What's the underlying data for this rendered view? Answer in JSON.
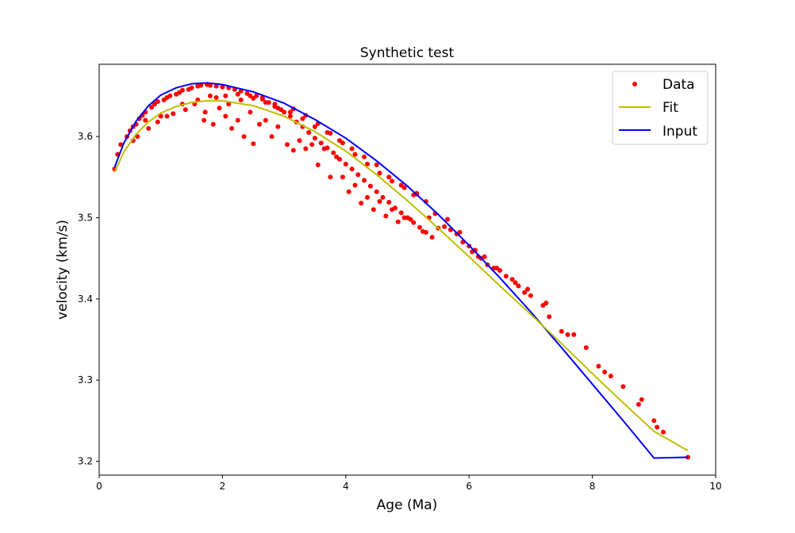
{
  "chart_data": {
    "type": "scatter",
    "title": "Synthetic test",
    "xlabel": "Age (Ma)",
    "ylabel": "velocity (km/s)",
    "xlim": [
      0,
      10
    ],
    "ylim": [
      3.183,
      3.689
    ],
    "xticks": [
      0,
      2,
      4,
      6,
      8,
      10
    ],
    "yticks": [
      3.2,
      3.3,
      3.4,
      3.5,
      3.6
    ],
    "xtick_labels": [
      "0",
      "2",
      "4",
      "6",
      "8",
      "10"
    ],
    "ytick_labels": [
      "3.2",
      "3.3",
      "3.4",
      "3.5",
      "3.6"
    ],
    "grid": false,
    "legend_position": "top-right",
    "legend": [
      {
        "name": "Data",
        "kind": "marker",
        "color": "#ff0000"
      },
      {
        "name": "Fit",
        "kind": "line",
        "color": "#bfbf00"
      },
      {
        "name": "Input",
        "kind": "line",
        "color": "#0000ff"
      }
    ],
    "series": [
      {
        "name": "Input",
        "kind": "line",
        "color": "#0000ff",
        "x": [
          0.25,
          0.4,
          0.6,
          0.8,
          1.0,
          1.25,
          1.5,
          1.75,
          2.0,
          2.5,
          3.0,
          3.5,
          4.0,
          4.5,
          5.0,
          5.5,
          6.0,
          6.5,
          7.0,
          7.5,
          8.0,
          8.5,
          9.0,
          9.55
        ],
        "y": [
          3.562,
          3.592,
          3.619,
          3.638,
          3.651,
          3.66,
          3.665,
          3.666,
          3.664,
          3.655,
          3.641,
          3.621,
          3.598,
          3.57,
          3.539,
          3.504,
          3.466,
          3.426,
          3.384,
          3.34,
          3.295,
          3.25,
          3.204,
          3.205
        ]
      },
      {
        "name": "Fit",
        "kind": "line",
        "color": "#bfbf00",
        "x": [
          0.25,
          0.4,
          0.6,
          0.8,
          1.0,
          1.25,
          1.5,
          1.75,
          2.0,
          2.5,
          3.0,
          3.5,
          4.0,
          4.5,
          5.0,
          5.5,
          6.0,
          6.5,
          7.0,
          7.5,
          8.0,
          8.5,
          9.0,
          9.55
        ],
        "y": [
          3.556,
          3.581,
          3.603,
          3.618,
          3.629,
          3.637,
          3.642,
          3.644,
          3.644,
          3.638,
          3.625,
          3.606,
          3.582,
          3.553,
          3.521,
          3.487,
          3.452,
          3.416,
          3.381,
          3.345,
          3.308,
          3.272,
          3.237,
          3.213
        ]
      },
      {
        "name": "Data",
        "kind": "scatter",
        "color": "#ff0000",
        "x": [
          0.25,
          0.3,
          0.35,
          0.45,
          0.5,
          0.55,
          0.6,
          0.62,
          0.65,
          0.7,
          0.75,
          0.8,
          0.85,
          0.9,
          0.95,
          1.0,
          1.05,
          1.1,
          1.15,
          1.2,
          1.25,
          1.3,
          1.35,
          1.4,
          1.45,
          1.5,
          1.55,
          1.6,
          1.65,
          1.7,
          1.72,
          1.75,
          1.8,
          1.85,
          1.9,
          1.95,
          2.0,
          2.05,
          2.1,
          2.15,
          2.2,
          2.25,
          2.3,
          2.35,
          2.4,
          2.45,
          2.5,
          2.55,
          2.6,
          2.65,
          2.7,
          2.75,
          2.8,
          2.85,
          2.9,
          2.95,
          3.0,
          3.05,
          3.1,
          3.15,
          3.2,
          3.25,
          3.3,
          3.35,
          3.4,
          3.45,
          3.5,
          3.55,
          3.6,
          3.65,
          3.7,
          3.75,
          3.8,
          3.85,
          3.9,
          3.95,
          4.0,
          4.05,
          4.1,
          4.15,
          4.2,
          4.25,
          4.3,
          4.35,
          4.4,
          4.45,
          4.5,
          4.55,
          4.6,
          4.65,
          4.7,
          4.75,
          4.8,
          4.85,
          4.9,
          4.95,
          5.0,
          5.05,
          5.1,
          5.15,
          5.2,
          5.25,
          5.3,
          5.35,
          5.4,
          5.5,
          5.6,
          5.7,
          5.8,
          5.9,
          6.0,
          6.05,
          6.1,
          6.15,
          6.2,
          6.3,
          6.4,
          6.5,
          6.6,
          6.7,
          6.8,
          6.9,
          7.0,
          7.2,
          7.3,
          7.5,
          7.6,
          7.9,
          8.1,
          8.2,
          8.5,
          8.75,
          9.0,
          9.05,
          9.15,
          9.55,
          0.55,
          0.75,
          0.95,
          1.1,
          1.35,
          1.6,
          1.8,
          2.1,
          2.3,
          2.5,
          2.7,
          2.9,
          3.1,
          3.3,
          3.5,
          3.7,
          3.9,
          4.1,
          4.3,
          4.5,
          4.7,
          4.9,
          5.1,
          5.3,
          1.9,
          2.05,
          2.25,
          2.45,
          2.65,
          2.85,
          3.15,
          3.35,
          3.55,
          3.75,
          3.95,
          4.15,
          4.35,
          4.55,
          4.75,
          4.95,
          5.15,
          5.45,
          5.65,
          5.85,
          6.25,
          6.45,
          6.75,
          6.95,
          7.25,
          7.7,
          8.3,
          8.8
        ],
        "y": [
          3.56,
          3.578,
          3.59,
          3.6,
          3.607,
          3.612,
          3.615,
          3.6,
          3.622,
          3.626,
          3.63,
          3.61,
          3.636,
          3.64,
          3.643,
          3.625,
          3.645,
          3.648,
          3.65,
          3.628,
          3.652,
          3.654,
          3.657,
          3.633,
          3.658,
          3.66,
          3.64,
          3.662,
          3.663,
          3.62,
          3.63,
          3.664,
          3.663,
          3.615,
          3.662,
          3.635,
          3.661,
          3.625,
          3.66,
          3.61,
          3.658,
          3.62,
          3.656,
          3.6,
          3.653,
          3.63,
          3.591,
          3.65,
          3.615,
          3.646,
          3.62,
          3.642,
          3.6,
          3.637,
          3.612,
          3.633,
          3.63,
          3.59,
          3.625,
          3.583,
          3.618,
          3.595,
          3.612,
          3.585,
          3.605,
          3.59,
          3.598,
          3.565,
          3.592,
          3.585,
          3.586,
          3.55,
          3.58,
          3.575,
          3.572,
          3.55,
          3.566,
          3.532,
          3.56,
          3.54,
          3.553,
          3.518,
          3.546,
          3.525,
          3.539,
          3.51,
          3.532,
          3.52,
          3.525,
          3.502,
          3.519,
          3.51,
          3.512,
          3.495,
          3.506,
          3.5,
          3.5,
          3.498,
          3.494,
          3.53,
          3.488,
          3.483,
          3.482,
          3.5,
          3.476,
          3.487,
          3.489,
          3.485,
          3.48,
          3.47,
          3.465,
          3.458,
          3.46,
          3.452,
          3.45,
          3.442,
          3.438,
          3.435,
          3.428,
          3.424,
          3.416,
          3.408,
          3.404,
          3.392,
          3.378,
          3.36,
          3.356,
          3.34,
          3.317,
          3.31,
          3.292,
          3.27,
          3.25,
          3.242,
          3.236,
          3.205,
          3.595,
          3.62,
          3.618,
          3.625,
          3.64,
          3.645,
          3.65,
          3.64,
          3.645,
          3.647,
          3.642,
          3.635,
          3.63,
          3.622,
          3.612,
          3.605,
          3.595,
          3.585,
          3.575,
          3.565,
          3.55,
          3.54,
          3.528,
          3.52,
          3.648,
          3.65,
          3.652,
          3.65,
          3.648,
          3.64,
          3.634,
          3.626,
          3.616,
          3.604,
          3.592,
          3.578,
          3.566,
          3.555,
          3.545,
          3.537,
          3.529,
          3.505,
          3.498,
          3.482,
          3.452,
          3.438,
          3.42,
          3.412,
          3.395,
          3.356,
          3.305,
          3.276
        ]
      }
    ]
  }
}
